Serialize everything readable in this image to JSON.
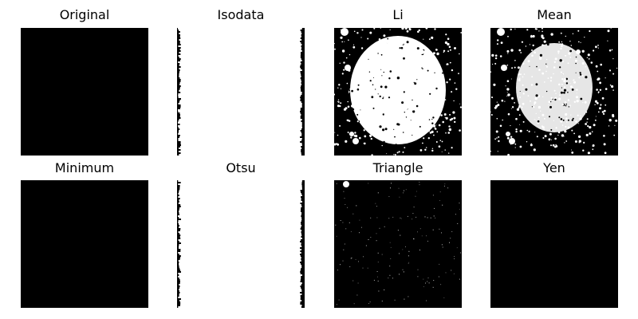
{
  "figure": {
    "panels": [
      {
        "title": "Original",
        "tone": "dark"
      },
      {
        "title": "Isodata",
        "tone": "edges"
      },
      {
        "title": "Li",
        "tone": "glow"
      },
      {
        "title": "Mean",
        "tone": "speckle"
      },
      {
        "title": "Minimum",
        "tone": "dark"
      },
      {
        "title": "Otsu",
        "tone": "edges"
      },
      {
        "title": "Triangle",
        "tone": "sparse"
      },
      {
        "title": "Yen",
        "tone": "dark"
      }
    ],
    "colors": {
      "black": "#000000",
      "white": "#ffffff"
    }
  }
}
